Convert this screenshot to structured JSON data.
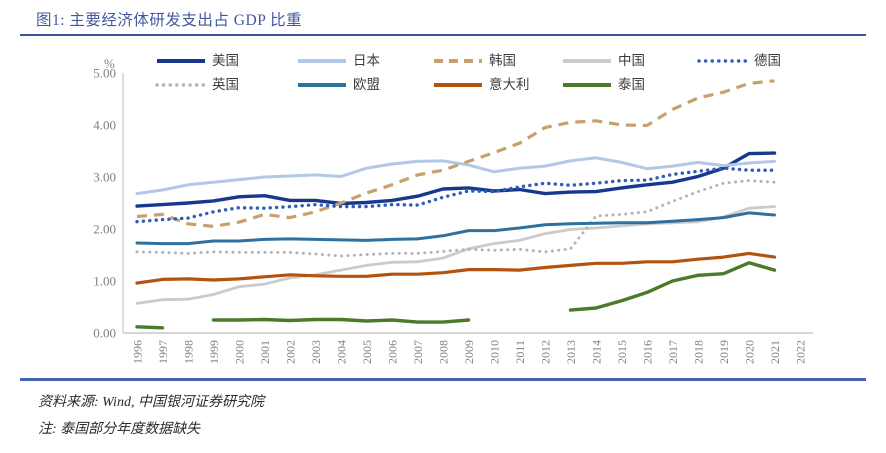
{
  "figure": {
    "title": "图1:  主要经济体研发支出占 GDP 比重",
    "source_line": "资料来源:  Wind,  中国银河证券研究院",
    "note_line": "注:  泰国部分年度数据缺失"
  },
  "colors": {
    "title_text": "#4458a0",
    "title_rule": "#36539c",
    "bottom_rule": "#4464ae",
    "axis_line": "#c8c8c8",
    "tick_text": "#808080",
    "footer_text": "#2b2b2b"
  },
  "chart_data": {
    "type": "line",
    "title": "主要经济体研发支出占GDP比重",
    "xlabel": "",
    "ylabel": "%",
    "ylim": [
      0,
      5
    ],
    "yticks": [
      "0.00",
      "1.00",
      "2.00",
      "3.00",
      "4.00",
      "5.00"
    ],
    "grid": false,
    "legend_position": "top",
    "x": [
      "1996",
      "1997",
      "1998",
      "1999",
      "2000",
      "2001",
      "2002",
      "2003",
      "2004",
      "2005",
      "2006",
      "2007",
      "2008",
      "2009",
      "2010",
      "2011",
      "2012",
      "2013",
      "2014",
      "2015",
      "2016",
      "2017",
      "2018",
      "2019",
      "2020",
      "2021",
      "2022"
    ],
    "data_end_year": "2021",
    "series": [
      {
        "id": "us",
        "label": "美国",
        "color": "#17388f",
        "style": "solid",
        "width": 3.4,
        "values": [
          2.44,
          2.47,
          2.5,
          2.54,
          2.62,
          2.64,
          2.55,
          2.55,
          2.49,
          2.51,
          2.55,
          2.63,
          2.77,
          2.79,
          2.73,
          2.76,
          2.68,
          2.71,
          2.72,
          2.79,
          2.85,
          2.9,
          3.01,
          3.17,
          3.45,
          3.46
        ]
      },
      {
        "id": "japan",
        "label": "日本",
        "color": "#b4c7e7",
        "style": "solid",
        "width": 3,
        "values": [
          2.68,
          2.75,
          2.85,
          2.9,
          2.95,
          3.0,
          3.02,
          3.04,
          3.01,
          3.17,
          3.25,
          3.3,
          3.31,
          3.23,
          3.1,
          3.17,
          3.21,
          3.31,
          3.37,
          3.28,
          3.16,
          3.21,
          3.28,
          3.22,
          3.27,
          3.3
        ]
      },
      {
        "id": "korea",
        "label": "韩国",
        "color": "#c7a06b",
        "style": "dashed",
        "width": 3.2,
        "values": [
          2.24,
          2.28,
          2.1,
          2.05,
          2.13,
          2.28,
          2.22,
          2.33,
          2.5,
          2.69,
          2.85,
          3.04,
          3.13,
          3.3,
          3.47,
          3.65,
          3.95,
          4.05,
          4.08,
          4.0,
          3.99,
          4.3,
          4.52,
          4.63,
          4.8,
          4.85
        ]
      },
      {
        "id": "china",
        "label": "中国",
        "color": "#cbcbcb",
        "style": "solid",
        "width": 2.8,
        "values": [
          0.57,
          0.64,
          0.65,
          0.74,
          0.89,
          0.94,
          1.06,
          1.12,
          1.21,
          1.3,
          1.36,
          1.37,
          1.44,
          1.62,
          1.72,
          1.78,
          1.91,
          1.99,
          2.02,
          2.06,
          2.1,
          2.12,
          2.14,
          2.23,
          2.4,
          2.43
        ]
      },
      {
        "id": "germany",
        "label": "德国",
        "color": "#2e5cb8",
        "style": "dotted",
        "width": 3.4,
        "values": [
          2.14,
          2.18,
          2.21,
          2.33,
          2.41,
          2.4,
          2.43,
          2.47,
          2.43,
          2.43,
          2.47,
          2.46,
          2.61,
          2.73,
          2.72,
          2.81,
          2.88,
          2.84,
          2.88,
          2.93,
          2.94,
          3.05,
          3.11,
          3.17,
          3.13,
          3.13
        ]
      },
      {
        "id": "uk",
        "label": "英国",
        "color": "#b5b5b5",
        "style": "dotted",
        "width": 3,
        "values": [
          1.56,
          1.55,
          1.53,
          1.56,
          1.55,
          1.55,
          1.55,
          1.52,
          1.48,
          1.51,
          1.53,
          1.53,
          1.57,
          1.61,
          1.59,
          1.61,
          1.56,
          1.62,
          2.25,
          2.28,
          2.33,
          2.53,
          2.72,
          2.88,
          2.93,
          2.9
        ]
      },
      {
        "id": "eu",
        "label": "欧盟",
        "color": "#2f709f",
        "style": "solid",
        "width": 3,
        "values": [
          1.73,
          1.72,
          1.72,
          1.77,
          1.77,
          1.8,
          1.81,
          1.8,
          1.79,
          1.78,
          1.8,
          1.81,
          1.87,
          1.97,
          1.97,
          2.02,
          2.08,
          2.1,
          2.11,
          2.12,
          2.12,
          2.15,
          2.18,
          2.22,
          2.31,
          2.27
        ]
      },
      {
        "id": "italy",
        "label": "意大利",
        "color": "#b4520f",
        "style": "solid",
        "width": 3.2,
        "values": [
          0.96,
          1.03,
          1.04,
          1.02,
          1.04,
          1.08,
          1.12,
          1.1,
          1.09,
          1.09,
          1.13,
          1.13,
          1.16,
          1.22,
          1.22,
          1.21,
          1.26,
          1.3,
          1.34,
          1.34,
          1.37,
          1.37,
          1.42,
          1.46,
          1.53,
          1.46
        ]
      },
      {
        "id": "thailand",
        "label": "泰国",
        "color": "#4b7a2a",
        "style": "solid",
        "width": 3.4,
        "values": [
          0.12,
          0.1,
          null,
          0.25,
          0.25,
          0.26,
          0.24,
          0.26,
          0.26,
          0.23,
          0.25,
          0.21,
          0.21,
          0.25,
          null,
          null,
          null,
          0.44,
          0.48,
          0.62,
          0.78,
          1.0,
          1.11,
          1.14,
          1.35,
          1.21
        ]
      }
    ]
  }
}
